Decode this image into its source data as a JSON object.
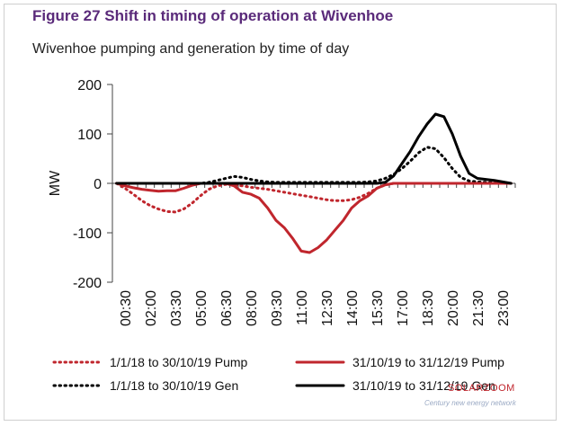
{
  "figure": {
    "title": "Figure 27  Shift in timing of operation at Wivenhoe",
    "subtitle": "Wivenhoe pumping and generation by time of day"
  },
  "colors": {
    "title": "#5a2a7a",
    "red": "#c0262d",
    "black": "#000000"
  },
  "watermark": {
    "text": "SOLARZOOM",
    "subtext": "Century new energy network"
  },
  "chart_data": {
    "type": "line",
    "title": "",
    "xlabel": "",
    "ylabel": "MW",
    "ylim": [
      -200,
      200
    ],
    "yticks": [
      -200,
      -100,
      0,
      100,
      200
    ],
    "grid": false,
    "legend_position": "bottom",
    "x": [
      "00:00",
      "00:30",
      "01:00",
      "01:30",
      "02:00",
      "02:30",
      "03:00",
      "03:30",
      "04:00",
      "04:30",
      "05:00",
      "05:30",
      "06:00",
      "06:30",
      "07:00",
      "07:30",
      "08:00",
      "08:30",
      "09:00",
      "09:30",
      "10:00",
      "10:30",
      "11:00",
      "11:30",
      "12:00",
      "12:30",
      "13:00",
      "13:30",
      "14:00",
      "14:30",
      "15:00",
      "15:30",
      "16:00",
      "16:30",
      "17:00",
      "17:30",
      "18:00",
      "18:30",
      "19:00",
      "19:30",
      "20:00",
      "20:30",
      "21:00",
      "21:30",
      "22:00",
      "22:30",
      "23:00",
      "23:30"
    ],
    "xtick_labels": [
      "00:30",
      "02:00",
      "03:30",
      "05:00",
      "06:30",
      "08:00",
      "09:30",
      "11:00",
      "12:30",
      "14:00",
      "15:30",
      "17:00",
      "18:30",
      "20:00",
      "21:30",
      "23:00"
    ],
    "series": [
      {
        "name": "1/1/18 to 30/10/19 Pump",
        "color": "#c0262d",
        "dash": "dotted",
        "values": [
          0,
          -10,
          -22,
          -35,
          -45,
          -52,
          -57,
          -58,
          -52,
          -40,
          -25,
          -12,
          -5,
          -2,
          -3,
          -5,
          -8,
          -10,
          -12,
          -15,
          -18,
          -21,
          -24,
          -27,
          -30,
          -33,
          -35,
          -35,
          -33,
          -28,
          -20,
          -10,
          -3,
          0,
          0,
          0,
          0,
          0,
          0,
          0,
          0,
          0,
          0,
          0,
          0,
          0,
          0,
          0
        ]
      },
      {
        "name": "31/10/19 to 31/12/19 Pump",
        "color": "#c0262d",
        "dash": "solid",
        "values": [
          0,
          -5,
          -9,
          -12,
          -14,
          -16,
          -15,
          -15,
          -10,
          -4,
          0,
          0,
          0,
          0,
          -5,
          -18,
          -22,
          -30,
          -50,
          -75,
          -90,
          -112,
          -137,
          -140,
          -130,
          -115,
          -95,
          -75,
          -50,
          -35,
          -25,
          -10,
          -3,
          0,
          0,
          0,
          0,
          0,
          0,
          0,
          0,
          0,
          0,
          0,
          0,
          0,
          0,
          0
        ]
      },
      {
        "name": "1/1/18 to 30/10/19 Gen",
        "color": "#000000",
        "dash": "dotted",
        "values": [
          0,
          0,
          0,
          0,
          0,
          0,
          0,
          0,
          0,
          0,
          0,
          2,
          6,
          10,
          14,
          12,
          8,
          5,
          3,
          2,
          2,
          2,
          2,
          2,
          2,
          2,
          2,
          2,
          2,
          2,
          3,
          5,
          10,
          18,
          30,
          45,
          62,
          73,
          70,
          52,
          30,
          12,
          5,
          3,
          2,
          1,
          0,
          0
        ]
      },
      {
        "name": "31/10/19 to 31/12/19 Gen",
        "color": "#000000",
        "dash": "solid",
        "values": [
          0,
          0,
          0,
          0,
          0,
          0,
          0,
          0,
          0,
          0,
          0,
          0,
          0,
          0,
          0,
          0,
          0,
          0,
          0,
          0,
          0,
          0,
          0,
          0,
          0,
          0,
          0,
          0,
          0,
          0,
          0,
          0,
          2,
          15,
          40,
          65,
          95,
          120,
          140,
          135,
          100,
          55,
          20,
          10,
          8,
          6,
          3,
          0
        ]
      }
    ]
  }
}
